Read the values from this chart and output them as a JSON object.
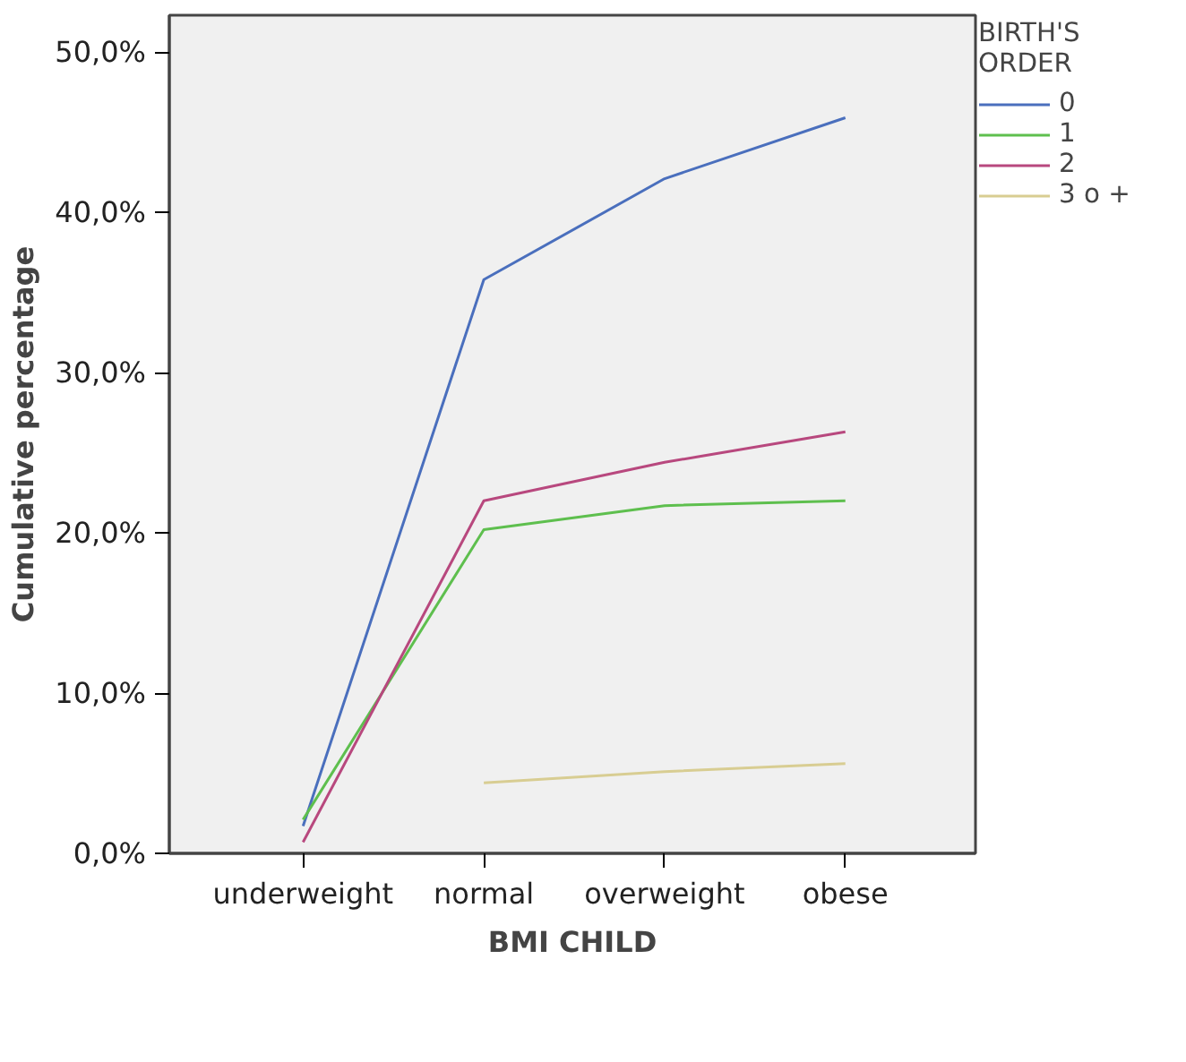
{
  "chart_data": {
    "type": "line",
    "xlabel": "BMI CHILD",
    "ylabel": "Cumulative percentage",
    "legend_title": "BIRTH'S\nORDER",
    "categories": [
      "underweight",
      "normal",
      "overweight",
      "obese"
    ],
    "series": [
      {
        "name": "0",
        "color": "#4a6fbd",
        "values": [
          1.7,
          35.8,
          42.1,
          45.9
        ]
      },
      {
        "name": "1",
        "color": "#5ebf4e",
        "values": [
          2.1,
          20.2,
          21.7,
          22.0
        ]
      },
      {
        "name": "2",
        "color": "#b8487e",
        "values": [
          0.7,
          22.0,
          24.4,
          26.3
        ]
      },
      {
        "name": "3 o +",
        "color": "#d8cd92",
        "values": [
          null,
          4.4,
          5.1,
          5.6
        ]
      }
    ],
    "ylim": [
      0,
      52.3
    ],
    "yticks": [
      {
        "value": 0,
        "label": "0,0%"
      },
      {
        "value": 10,
        "label": "10,0%"
      },
      {
        "value": 20,
        "label": "20,0%"
      },
      {
        "value": 30,
        "label": "30,0%"
      },
      {
        "value": 40,
        "label": "40,0%"
      },
      {
        "value": 50,
        "label": "50,0%"
      }
    ],
    "grid": false,
    "legend": "right",
    "marker": "none",
    "line_style": "solid"
  }
}
